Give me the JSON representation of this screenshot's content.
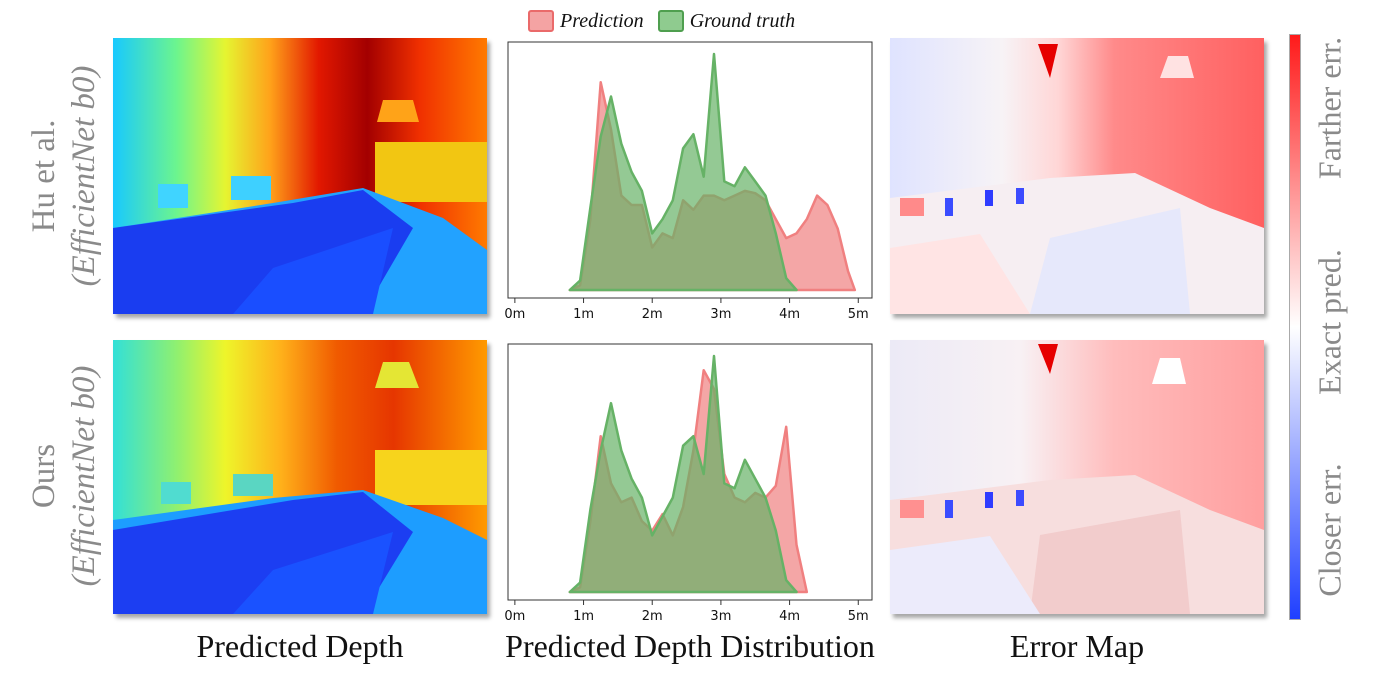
{
  "legend": {
    "prediction": "Prediction",
    "ground_truth": "Ground truth",
    "prediction_color": "#f08080",
    "ground_truth_color": "#66b266"
  },
  "rows": [
    {
      "label_line1": "Hu et al.",
      "label_line2": "(EfficientNet b0)"
    },
    {
      "label_line1": "Ours",
      "label_line2": "(EfficientNet b0)"
    }
  ],
  "captions": {
    "depth": "Predicted Depth",
    "distribution": "Predicted Depth Distribution",
    "error": "Error Map"
  },
  "colorbar": {
    "labels": [
      "Closer err.",
      "Exact pred.",
      "Farther err."
    ],
    "colors": [
      "#1f3fff",
      "#ffffff",
      "#ff1a1a"
    ]
  },
  "chart_data": [
    {
      "type": "area",
      "title": "",
      "x_ticks": [
        "0m",
        "1m",
        "2m",
        "3m",
        "4m",
        "5m"
      ],
      "xlim": [
        -0.1,
        5.2
      ],
      "series": [
        {
          "name": "Prediction",
          "color": "#f08080",
          "x": [
            0.8,
            0.95,
            1.1,
            1.25,
            1.4,
            1.55,
            1.7,
            1.85,
            2.0,
            2.15,
            2.3,
            2.45,
            2.6,
            2.75,
            2.9,
            3.05,
            3.2,
            3.35,
            3.5,
            3.65,
            3.8,
            3.95,
            4.1,
            4.25,
            4.4,
            4.55,
            4.7,
            4.85,
            4.95
          ],
          "values": [
            0.0,
            0.02,
            0.3,
            0.88,
            0.68,
            0.4,
            0.36,
            0.36,
            0.18,
            0.24,
            0.22,
            0.38,
            0.34,
            0.4,
            0.4,
            0.38,
            0.4,
            0.42,
            0.41,
            0.38,
            0.3,
            0.22,
            0.24,
            0.3,
            0.4,
            0.36,
            0.26,
            0.08,
            0.0
          ]
        },
        {
          "name": "Ground truth",
          "color": "#66b266",
          "x": [
            0.8,
            0.95,
            1.1,
            1.25,
            1.4,
            1.55,
            1.7,
            1.85,
            2.0,
            2.15,
            2.3,
            2.45,
            2.6,
            2.75,
            2.9,
            3.05,
            3.2,
            3.35,
            3.5,
            3.65,
            3.8,
            3.95,
            4.1
          ],
          "values": [
            0.0,
            0.04,
            0.35,
            0.65,
            0.82,
            0.62,
            0.5,
            0.42,
            0.24,
            0.3,
            0.38,
            0.6,
            0.66,
            0.48,
            1.0,
            0.46,
            0.44,
            0.52,
            0.46,
            0.4,
            0.24,
            0.05,
            0.0
          ]
        }
      ]
    },
    {
      "type": "area",
      "title": "",
      "x_ticks": [
        "0m",
        "1m",
        "2m",
        "3m",
        "4m",
        "5m"
      ],
      "xlim": [
        -0.1,
        5.2
      ],
      "series": [
        {
          "name": "Prediction",
          "color": "#f08080",
          "x": [
            0.8,
            0.95,
            1.1,
            1.25,
            1.4,
            1.55,
            1.7,
            1.85,
            2.0,
            2.15,
            2.3,
            2.45,
            2.6,
            2.75,
            2.9,
            3.05,
            3.2,
            3.35,
            3.5,
            3.65,
            3.8,
            3.95,
            4.1,
            4.25
          ],
          "values": [
            0.0,
            0.02,
            0.3,
            0.66,
            0.46,
            0.38,
            0.4,
            0.3,
            0.26,
            0.33,
            0.24,
            0.36,
            0.6,
            0.94,
            0.86,
            0.5,
            0.4,
            0.38,
            0.42,
            0.4,
            0.45,
            0.7,
            0.2,
            0.0
          ]
        },
        {
          "name": "Ground truth",
          "color": "#66b266",
          "x": [
            0.8,
            0.95,
            1.1,
            1.25,
            1.4,
            1.55,
            1.7,
            1.85,
            2.0,
            2.15,
            2.3,
            2.45,
            2.6,
            2.75,
            2.9,
            3.05,
            3.2,
            3.35,
            3.5,
            3.65,
            3.8,
            3.95,
            4.1
          ],
          "values": [
            0.0,
            0.04,
            0.35,
            0.6,
            0.8,
            0.6,
            0.48,
            0.4,
            0.24,
            0.32,
            0.4,
            0.62,
            0.66,
            0.5,
            1.0,
            0.46,
            0.44,
            0.56,
            0.48,
            0.4,
            0.26,
            0.05,
            0.0
          ]
        }
      ]
    }
  ]
}
